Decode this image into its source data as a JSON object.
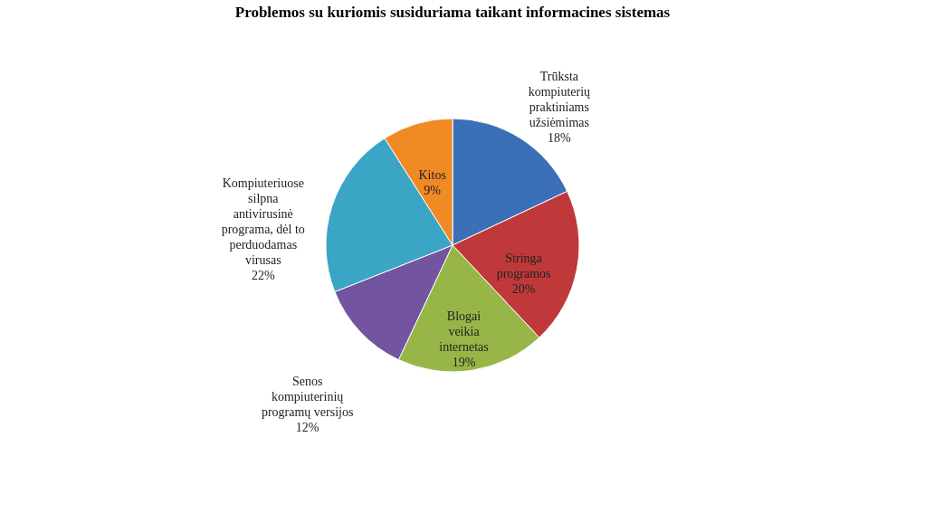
{
  "chart_data": {
    "type": "pie",
    "title": "Problemos su kuriomis susiduriama taikant informacines sistemas",
    "categories": [
      "Trūksta kompiuterių praktiniams užsiėmimas",
      "Stringa programos",
      "Blogai veikia internetas",
      "Senos kompiuterinių programų versijos",
      "Kompiuteriuose silpna antivirusinė programa, dėl to perduodamas virusas",
      "Kitos"
    ],
    "values": [
      18,
      20,
      19,
      12,
      22,
      9
    ],
    "value_labels": [
      "18%",
      "20%",
      "19%",
      "12%",
      "22%",
      "9%"
    ],
    "colors": [
      "#3b70b8",
      "#c0393a",
      "#98b648",
      "#7254a0",
      "#3aa5c4",
      "#f08a24"
    ],
    "legend": false
  }
}
